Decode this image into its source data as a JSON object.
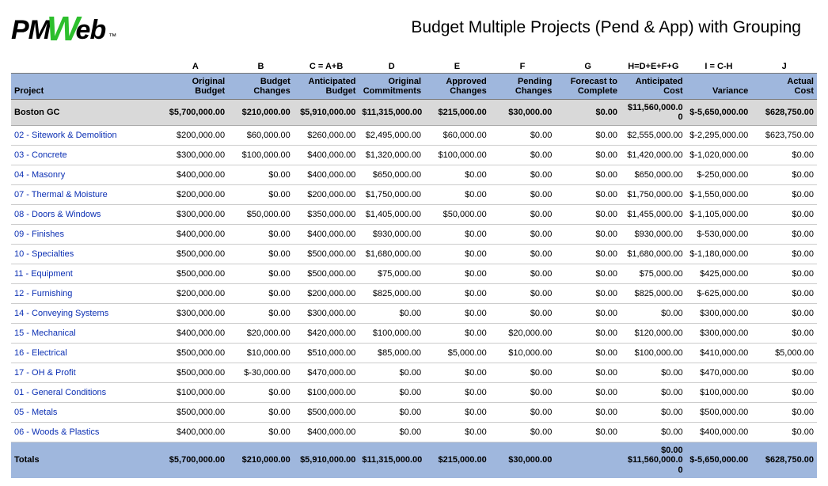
{
  "report": {
    "title": "Budget Multiple Projects (Pend & App) with Grouping",
    "logo": {
      "pm": "PM",
      "w": "W",
      "eb": "eb",
      "tm": "™"
    }
  },
  "columns": {
    "letters": [
      "",
      "A",
      "B",
      "C = A+B",
      "D",
      "E",
      "F",
      "G",
      "H=D+E+F+G",
      "I = C-H",
      "J"
    ],
    "headers": [
      "Project",
      "Original Budget",
      "Budget Changes",
      "Anticipated Budget",
      "Original Commitments",
      "Approved Changes",
      "Pending Changes",
      "Forecast to Complete",
      "Anticipated Cost",
      "Variance",
      "Actual Cost"
    ]
  },
  "group": {
    "name": "Boston GC",
    "values": [
      "$5,700,000.00",
      "$210,000.00",
      "$5,910,000.00",
      "$11,315,000.00",
      "$215,000.00",
      "$30,000.00",
      "$0.00",
      "$11,560,000.00",
      "$-5,650,000.00",
      "$628,750.00"
    ]
  },
  "rows": [
    {
      "name": "02 - Sitework & Demolition",
      "v": [
        "$200,000.00",
        "$60,000.00",
        "$260,000.00",
        "$2,495,000.00",
        "$60,000.00",
        "$0.00",
        "$0.00",
        "$2,555,000.00",
        "$-2,295,000.00",
        "$623,750.00"
      ]
    },
    {
      "name": "03 - Concrete",
      "v": [
        "$300,000.00",
        "$100,000.00",
        "$400,000.00",
        "$1,320,000.00",
        "$100,000.00",
        "$0.00",
        "$0.00",
        "$1,420,000.00",
        "$-1,020,000.00",
        "$0.00"
      ]
    },
    {
      "name": "04 - Masonry",
      "v": [
        "$400,000.00",
        "$0.00",
        "$400,000.00",
        "$650,000.00",
        "$0.00",
        "$0.00",
        "$0.00",
        "$650,000.00",
        "$-250,000.00",
        "$0.00"
      ]
    },
    {
      "name": "07 - Thermal & Moisture",
      "v": [
        "$200,000.00",
        "$0.00",
        "$200,000.00",
        "$1,750,000.00",
        "$0.00",
        "$0.00",
        "$0.00",
        "$1,750,000.00",
        "$-1,550,000.00",
        "$0.00"
      ]
    },
    {
      "name": "08 - Doors & Windows",
      "v": [
        "$300,000.00",
        "$50,000.00",
        "$350,000.00",
        "$1,405,000.00",
        "$50,000.00",
        "$0.00",
        "$0.00",
        "$1,455,000.00",
        "$-1,105,000.00",
        "$0.00"
      ]
    },
    {
      "name": "09 - Finishes",
      "v": [
        "$400,000.00",
        "$0.00",
        "$400,000.00",
        "$930,000.00",
        "$0.00",
        "$0.00",
        "$0.00",
        "$930,000.00",
        "$-530,000.00",
        "$0.00"
      ]
    },
    {
      "name": "10 - Specialties",
      "v": [
        "$500,000.00",
        "$0.00",
        "$500,000.00",
        "$1,680,000.00",
        "$0.00",
        "$0.00",
        "$0.00",
        "$1,680,000.00",
        "$-1,180,000.00",
        "$0.00"
      ]
    },
    {
      "name": "11 - Equipment",
      "v": [
        "$500,000.00",
        "$0.00",
        "$500,000.00",
        "$75,000.00",
        "$0.00",
        "$0.00",
        "$0.00",
        "$75,000.00",
        "$425,000.00",
        "$0.00"
      ]
    },
    {
      "name": "12 - Furnishing",
      "v": [
        "$200,000.00",
        "$0.00",
        "$200,000.00",
        "$825,000.00",
        "$0.00",
        "$0.00",
        "$0.00",
        "$825,000.00",
        "$-625,000.00",
        "$0.00"
      ]
    },
    {
      "name": "14 - Conveying Systems",
      "v": [
        "$300,000.00",
        "$0.00",
        "$300,000.00",
        "$0.00",
        "$0.00",
        "$0.00",
        "$0.00",
        "$0.00",
        "$300,000.00",
        "$0.00"
      ]
    },
    {
      "name": "15 - Mechanical",
      "v": [
        "$400,000.00",
        "$20,000.00",
        "$420,000.00",
        "$100,000.00",
        "$0.00",
        "$20,000.00",
        "$0.00",
        "$120,000.00",
        "$300,000.00",
        "$0.00"
      ]
    },
    {
      "name": "16 - Electrical",
      "v": [
        "$500,000.00",
        "$10,000.00",
        "$510,000.00",
        "$85,000.00",
        "$5,000.00",
        "$10,000.00",
        "$0.00",
        "$100,000.00",
        "$410,000.00",
        "$5,000.00"
      ]
    },
    {
      "name": "17 - OH & Profit",
      "v": [
        "$500,000.00",
        "$-30,000.00",
        "$470,000.00",
        "$0.00",
        "$0.00",
        "$0.00",
        "$0.00",
        "$0.00",
        "$470,000.00",
        "$0.00"
      ]
    },
    {
      "name": "01 - General Conditions",
      "v": [
        "$100,000.00",
        "$0.00",
        "$100,000.00",
        "$0.00",
        "$0.00",
        "$0.00",
        "$0.00",
        "$0.00",
        "$100,000.00",
        "$0.00"
      ]
    },
    {
      "name": "05 - Metals",
      "v": [
        "$500,000.00",
        "$0.00",
        "$500,000.00",
        "$0.00",
        "$0.00",
        "$0.00",
        "$0.00",
        "$0.00",
        "$500,000.00",
        "$0.00"
      ]
    },
    {
      "name": "06 - Woods & Plastics",
      "v": [
        "$400,000.00",
        "$0.00",
        "$400,000.00",
        "$0.00",
        "$0.00",
        "$0.00",
        "$0.00",
        "$0.00",
        "$400,000.00",
        "$0.00"
      ]
    }
  ],
  "totals": {
    "label": "Totals",
    "values": [
      "$5,700,000.00",
      "$210,000.00",
      "$5,910,000.00",
      "$11,315,000.00",
      "$215,000.00",
      "$30,000.00",
      "",
      "$0.00 $11,560,000.00",
      "$-5,650,000.00",
      "$628,750.00"
    ]
  }
}
